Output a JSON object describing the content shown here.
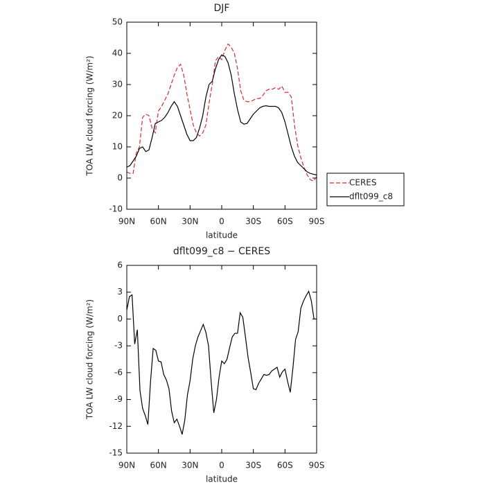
{
  "chart_data": [
    {
      "type": "line",
      "title": "DJF",
      "xlabel": "latitude",
      "ylabel": "TOA LW cloud forcing (W/m²)",
      "x": [
        90,
        87,
        84,
        81,
        78,
        75,
        72,
        69,
        66,
        63,
        60,
        57,
        54,
        51,
        48,
        45,
        42,
        39,
        36,
        33,
        30,
        27,
        24,
        21,
        18,
        15,
        12,
        9,
        6,
        3,
        0,
        -3,
        -6,
        -9,
        -12,
        -15,
        -18,
        -21,
        -24,
        -27,
        -30,
        -33,
        -36,
        -39,
        -42,
        -45,
        -48,
        -51,
        -54,
        -57,
        -60,
        -63,
        -66,
        -69,
        -72,
        -75,
        -78,
        -81,
        -84,
        -87,
        -90
      ],
      "series": [
        {
          "name": "CERES",
          "color": "#e8262b",
          "style": "dashed",
          "values": [
            2,
            1.5,
            1.5,
            8,
            10,
            19.5,
            20.5,
            20,
            16,
            14.5,
            21.5,
            23,
            25,
            27,
            30,
            33,
            35.5,
            36.5,
            33,
            27,
            22,
            17,
            14.5,
            13.5,
            14.5,
            17,
            24,
            30,
            37.5,
            39,
            38,
            41,
            43,
            42,
            40,
            35,
            28,
            25,
            24.5,
            24.5,
            25,
            25.5,
            25.5,
            26.5,
            28,
            28.5,
            28.5,
            29,
            28.5,
            29.5,
            27.5,
            27.5,
            26,
            17,
            10.5,
            6.5,
            3.5,
            1,
            -0.5,
            -1,
            0.5
          ]
        },
        {
          "name": "dflt099_c8",
          "color": "#000000",
          "style": "solid",
          "values": [
            3.5,
            4,
            5.5,
            7,
            9.5,
            10,
            8.5,
            9,
            13,
            17.5,
            18,
            18.5,
            19.5,
            21,
            23,
            24.5,
            23,
            20,
            17,
            14,
            12,
            12,
            13,
            16,
            20,
            26,
            30,
            31,
            35,
            38,
            39.5,
            39,
            37,
            33,
            27,
            22,
            18,
            17.3,
            17.5,
            19,
            20.5,
            21.5,
            22.5,
            23,
            23.2,
            23,
            23,
            23,
            22.5,
            21,
            18,
            14,
            10,
            7,
            5,
            4,
            3,
            2,
            1.5,
            1.2,
            1
          ]
        }
      ],
      "xlim": [
        90,
        -90
      ],
      "xticks": [
        {
          "value": 90,
          "label": "90N"
        },
        {
          "value": 60,
          "label": "60N"
        },
        {
          "value": 30,
          "label": "30N"
        },
        0,
        {
          "value": -30,
          "label": "30S"
        },
        {
          "value": -60,
          "label": "60S"
        },
        {
          "value": -90,
          "label": "90S"
        }
      ],
      "ylim": [
        -10,
        50
      ],
      "yticks": [
        -10,
        0,
        10,
        20,
        30,
        40,
        50
      ],
      "legend": "right"
    },
    {
      "type": "line",
      "title": "dflt099_c8 − CERES",
      "xlabel": "latitude",
      "ylabel": "TOA LW cloud forcing (W/m²)",
      "x": [
        90,
        87.5,
        85,
        82.5,
        80,
        77.5,
        75,
        72.5,
        70,
        67.5,
        65,
        62.5,
        60,
        57.5,
        55,
        52.5,
        50,
        47.5,
        45,
        42.5,
        40,
        37.5,
        35,
        32.5,
        30,
        27.5,
        25,
        22.5,
        20,
        17.5,
        15,
        12.5,
        10,
        7.5,
        5,
        2.5,
        0,
        -2.5,
        -5,
        -7.5,
        -10,
        -12.5,
        -15,
        -17.5,
        -20,
        -22.5,
        -25,
        -27.5,
        -30,
        -32.5,
        -35,
        -37.5,
        -40,
        -42.5,
        -45,
        -47.5,
        -50,
        -52.5,
        -55,
        -57.5,
        -60,
        -62.5,
        -65,
        -67.5,
        -70,
        -72.5,
        -75,
        -77.5,
        -80,
        -82.5,
        -85,
        -87.5,
        -90
      ],
      "series": [
        {
          "name": "dflt099_c8",
          "color": "#000000",
          "style": "solid",
          "values": [
            1,
            2.5,
            2.7,
            -2.8,
            -1.2,
            -8,
            -10,
            -10.8,
            -11.8,
            -7,
            -3.3,
            -3.5,
            -4.7,
            -4.8,
            -6.2,
            -6.8,
            -7.8,
            -10.3,
            -11.6,
            -11.2,
            -12,
            -12.9,
            -11.3,
            -8.5,
            -6.9,
            -4.5,
            -3,
            -2,
            -1.3,
            -0.6,
            -1.5,
            -3,
            -7,
            -10.5,
            -9,
            -6.5,
            -4.7,
            -5,
            -4.5,
            -3.2,
            -2,
            -1.6,
            -1.6,
            0.7,
            0.2,
            -2,
            -4.3,
            -6,
            -7.8,
            -7.9,
            -7.2,
            -6.7,
            -6.2,
            -6.3,
            -6.2,
            -5.8,
            -5.6,
            -5.4,
            -6.5,
            -5.9,
            -5.6,
            -7,
            -8.2,
            -5.5,
            -2.3,
            -1.4,
            1.2,
            2,
            2.6,
            3.1,
            2,
            0,
            0
          ]
        }
      ],
      "xlim": [
        90,
        -90
      ],
      "xticks": [
        {
          "value": 90,
          "label": "90N"
        },
        {
          "value": 60,
          "label": "60N"
        },
        {
          "value": 30,
          "label": "30N"
        },
        0,
        {
          "value": -30,
          "label": "30S"
        },
        {
          "value": -60,
          "label": "60S"
        },
        {
          "value": -90,
          "label": "90S"
        }
      ],
      "ylim": [
        -15,
        6
      ],
      "yticks": [
        -15,
        -12,
        -9,
        -6,
        -3,
        0,
        3,
        6
      ]
    }
  ]
}
